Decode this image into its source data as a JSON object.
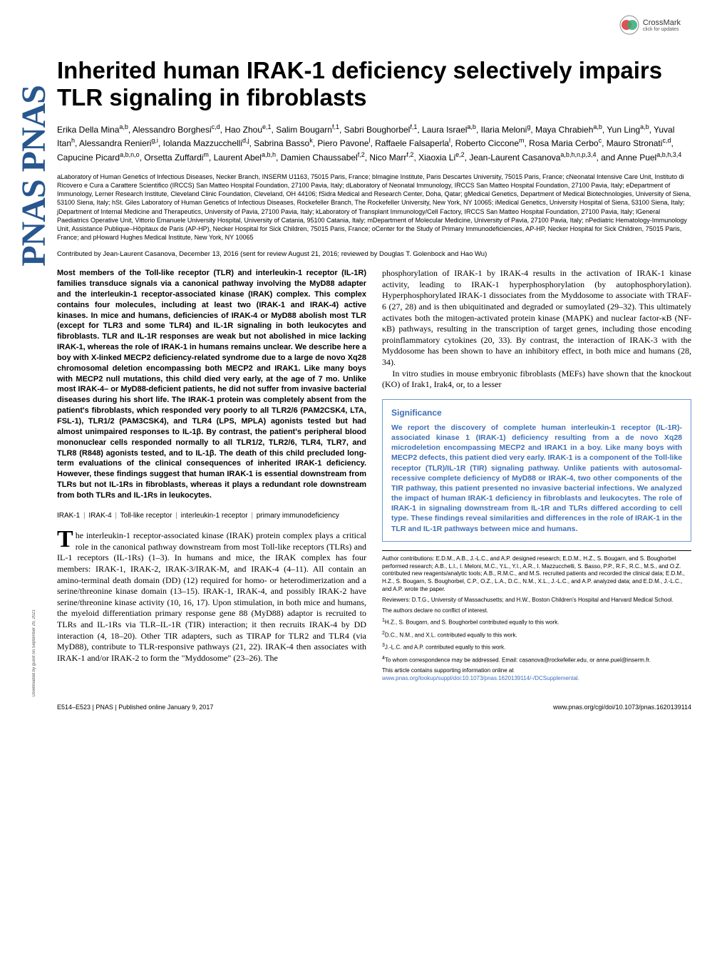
{
  "crossmark": {
    "label": "CrossMark",
    "sub": "click for updates"
  },
  "sidebar_logo": "PNAS PNAS",
  "title": "Inherited human IRAK-1 deficiency selectively impairs TLR signaling in fibroblasts",
  "authors_html": "Erika Della Mina<sup>a,b</sup>, Alessandro Borghesi<sup>c,d</sup>, Hao Zhou<sup>e,1</sup>, Salim Bougarn<sup>f,1</sup>, Sabri Boughorbel<sup>f,1</sup>, Laura Israel<sup>a,b</sup>, Ilaria Meloni<sup>g</sup>, Maya Chrabieh<sup>a,b</sup>, Yun Ling<sup>a,b</sup>, Yuval Itan<sup>h</sup>, Alessandra Renieri<sup>g,i</sup>, Iolanda Mazzucchelli<sup>d,j</sup>, Sabrina Basso<sup>k</sup>, Piero Pavone<sup>l</sup>, Raffaele Falsaperla<sup>l</sup>, Roberto Ciccone<sup>m</sup>, Rosa Maria Cerbo<sup>c</sup>, Mauro Stronati<sup>c,d</sup>, Capucine Picard<sup>a,b,n,o</sup>, Orsetta Zuffardi<sup>m</sup>, Laurent Abel<sup>a,b,h</sup>, Damien Chaussabel<sup>f,2</sup>, Nico Marr<sup>f,2</sup>, Xiaoxia Li<sup>e,2</sup>, Jean-Laurent Casanova<sup>a,b,h,n,p,3,4</sup>, and Anne Puel<sup>a,b,h,3,4</sup>",
  "affiliations": "aLaboratory of Human Genetics of Infectious Diseases, Necker Branch, INSERM U1163, 75015 Paris, France; bImagine Institute, Paris Descartes University, 75015 Paris, France; cNeonatal Intensive Care Unit, Instituto di Ricovero e Cura a Carattere Scientifico (IRCCS) San Matteo Hospital Foundation, 27100 Pavia, Italy; dLaboratory of Neonatal Immunology, IRCCS San Matteo Hospital Foundation, 27100 Pavia, Italy; eDepartment of Immunology, Lerner Research Institute, Cleveland Clinic Foundation, Cleveland, OH 44106; fSidra Medical and Research Center, Doha, Qatar; gMedical Genetics, Department of Medical Biotechnologies, University of Siena, 53100 Siena, Italy; hSt. Giles Laboratory of Human Genetics of Infectious Diseases, Rockefeller Branch, The Rockefeller University, New York, NY 10065; iMedical Genetics, University Hospital of Siena, 53100 Siena, Italy; jDepartment of Internal Medicine and Therapeutics, University of Pavia, 27100 Pavia, Italy; kLaboratory of Transplant Immunology/Cell Factory, IRCCS San Matteo Hospital Foundation, 27100 Pavia, Italy; lGeneral Paediatrics Operative Unit, Vittorio Emanuele University Hospital, University of Catania, 95100 Catania, Italy; mDepartment of Molecular Medicine, University of Pavia, 27100 Pavia, Italy; nPediatric Hematology-Immunology Unit, Assistance Publique–Hôpitaux de Paris (AP-HP), Necker Hospital for Sick Children, 75015 Paris, France; oCenter for the Study of Primary Immunodeficiencies, AP-HP, Necker Hospital for Sick Children, 75015 Paris, France; and pHoward Hughes Medical Institute, New York, NY 10065",
  "contributed": "Contributed by Jean-Laurent Casanova, December 13, 2016 (sent for review August 21, 2016; reviewed by Douglas T. Golenbock and Hao Wu)",
  "abstract": "Most members of the Toll-like receptor (TLR) and interleukin-1 receptor (IL-1R) families transduce signals via a canonical pathway involving the MyD88 adapter and the interleukin-1 receptor-associated kinase (IRAK) complex. This complex contains four molecules, including at least two (IRAK-1 and IRAK-4) active kinases. In mice and humans, deficiencies of IRAK-4 or MyD88 abolish most TLR (except for TLR3 and some TLR4) and IL-1R signaling in both leukocytes and fibroblasts. TLR and IL-1R responses are weak but not abolished in mice lacking IRAK-1, whereas the role of IRAK-1 in humans remains unclear. We describe here a boy with X-linked MECP2 deficiency-related syndrome due to a large de novo Xq28 chromosomal deletion encompassing both MECP2 and IRAK1. Like many boys with MECP2 null mutations, this child died very early, at the age of 7 mo. Unlike most IRAK-4– or MyD88-deficient patients, he did not suffer from invasive bacterial diseases during his short life. The IRAK-1 protein was completely absent from the patient's fibroblasts, which responded very poorly to all TLR2/6 (PAM2CSK4, LTA, FSL-1), TLR1/2 (PAM3CSK4), and TLR4 (LPS, MPLA) agonists tested but had almost unimpaired responses to IL-1β. By contrast, the patient's peripheral blood mononuclear cells responded normally to all TLR1/2, TLR2/6, TLR4, TLR7, and TLR8 (R848) agonists tested, and to IL-1β. The death of this child precluded long-term evaluations of the clinical consequences of inherited IRAK-1 deficiency. However, these findings suggest that human IRAK-1 is essential downstream from TLRs but not IL-1Rs in fibroblasts, whereas it plays a redundant role downstream from both TLRs and IL-1Rs in leukocytes.",
  "keywords": [
    "IRAK-1",
    "IRAK-4",
    "Toll-like receptor",
    "interleukin-1 receptor",
    "primary immunodeficiency"
  ],
  "body_left": "he interleukin-1 receptor-associated kinase (IRAK) protein complex plays a critical role in the canonical pathway downstream from most Toll-like receptors (TLRs) and IL-1 receptors (IL-1Rs) (1–3). In humans and mice, the IRAK complex has four members: IRAK-1, IRAK-2, IRAK-3/IRAK-M, and IRAK-4 (4–11). All contain an amino-terminal death domain (DD) (12) required for homo- or heterodimerization and a serine/threonine kinase domain (13–15). IRAK-1, IRAK-4, and possibly IRAK-2 have serine/threonine kinase activity (10, 16, 17). Upon stimulation, in both mice and humans, the myeloid differentiation primary response gene 88 (MyD88) adaptor is recruited to TLRs and IL-1Rs via TLR–IL-1R (TIR) interaction; it then recruits IRAK-4 by DD interaction (4, 18–20). Other TIR adapters, such as TIRAP for TLR2 and TLR4 (via MyD88), contribute to TLR-responsive pathways (21, 22). IRAK-4 then associates with IRAK-1 and/or IRAK-2 to form the \"Myddosome\" (23–26). The",
  "body_right_1": "phosphorylation of IRAK-1 by IRAK-4 results in the activation of IRAK-1 kinase activity, leading to IRAK-1 hyperphosphorylation (by autophosphorylation). Hyperphosphorylated IRAK-1 dissociates from the Myddosome to associate with TRAF-6 (27, 28) and is then ubiquitinated and degraded or sumoylated (29–32). This ultimately activates both the mitogen-activated protein kinase (MAPK) and nuclear factor-κB (NF-κB) pathways, resulting in the transcription of target genes, including those encoding proinflammatory cytokines (20, 33). By contrast, the interaction of IRAK-3 with the Myddosome has been shown to have an inhibitory effect, in both mice and humans (28, 34).",
  "body_right_2": "In vitro studies in mouse embryonic fibroblasts (MEFs) have shown that the knockout (KO) of Irak1, Irak4, or, to a lesser",
  "significance": {
    "title": "Significance",
    "body": "We report the discovery of complete human interleukin-1 receptor (IL-1R)-associated kinase 1 (IRAK-1) deficiency resulting from a de novo Xq28 microdeletion encompassing MECP2 and IRAK1 in a boy. Like many boys with MECP2 defects, this patient died very early. IRAK-1 is a component of the Toll-like receptor (TLR)/IL-1R (TIR) signaling pathway. Unlike patients with autosomal-recessive complete deficiency of MyD88 or IRAK-4, two other components of the TIR pathway, this patient presented no invasive bacterial infections. We analyzed the impact of human IRAK-1 deficiency in fibroblasts and leukocytes. The role of IRAK-1 in signaling downstream from IL-1R and TLRs differed according to cell type. These findings reveal similarities and differences in the role of IRAK-1 in the TLR and IL-1R pathways between mice and humans."
  },
  "footer": {
    "author_contrib": "Author contributions: E.D.M., A.B., J.-L.C., and A.P. designed research; E.D.M., H.Z., S. Bougarn, and S. Boughorbel performed research; A.B., L.I., I. Meloni, M.C., Y.L., Y.I., A.R., I. Mazzucchelli, S. Basso, P.P., R.F., R.C., M.S., and O.Z. contributed new reagents/analytic tools; A.B., R.M.C., and M.S. recruited patients and recorded the clinical data; E.D.M., H.Z., S. Bougarn, S. Boughorbel, C.P., O.Z., L.A., D.C., N.M., X.L., J.-L.C., and A.P. analyzed data; and E.D.M., J.-L.C., and A.P. wrote the paper.",
    "reviewers": "Reviewers: D.T.G., University of Massachusetts; and H.W., Boston Children's Hospital and Harvard Medical School.",
    "conflict": "The authors declare no conflict of interest.",
    "note1": "1H.Z., S. Bougarn, and S. Boughorbel contributed equally to this work.",
    "note2": "2D.C., N.M., and X.L. contributed equally to this work.",
    "note3": "3J.-L.C. and A.P. contributed equally to this work.",
    "note4": "4To whom correspondence may be addressed. Email: casanova@rockefeller.edu, or anne.puel@inserm.fr.",
    "supp": "This article contains supporting information online at ",
    "supp_link": "www.pnas.org/lookup/suppl/doi:10.1073/pnas.1620139114/-/DCSupplemental."
  },
  "bottom": {
    "left": "E514–E523  |  PNAS  |  Published online January 9, 2017",
    "right": "www.pnas.org/cgi/doi/10.1073/pnas.1620139114"
  },
  "download_tag": "Downloaded by guest on September 29, 2021"
}
